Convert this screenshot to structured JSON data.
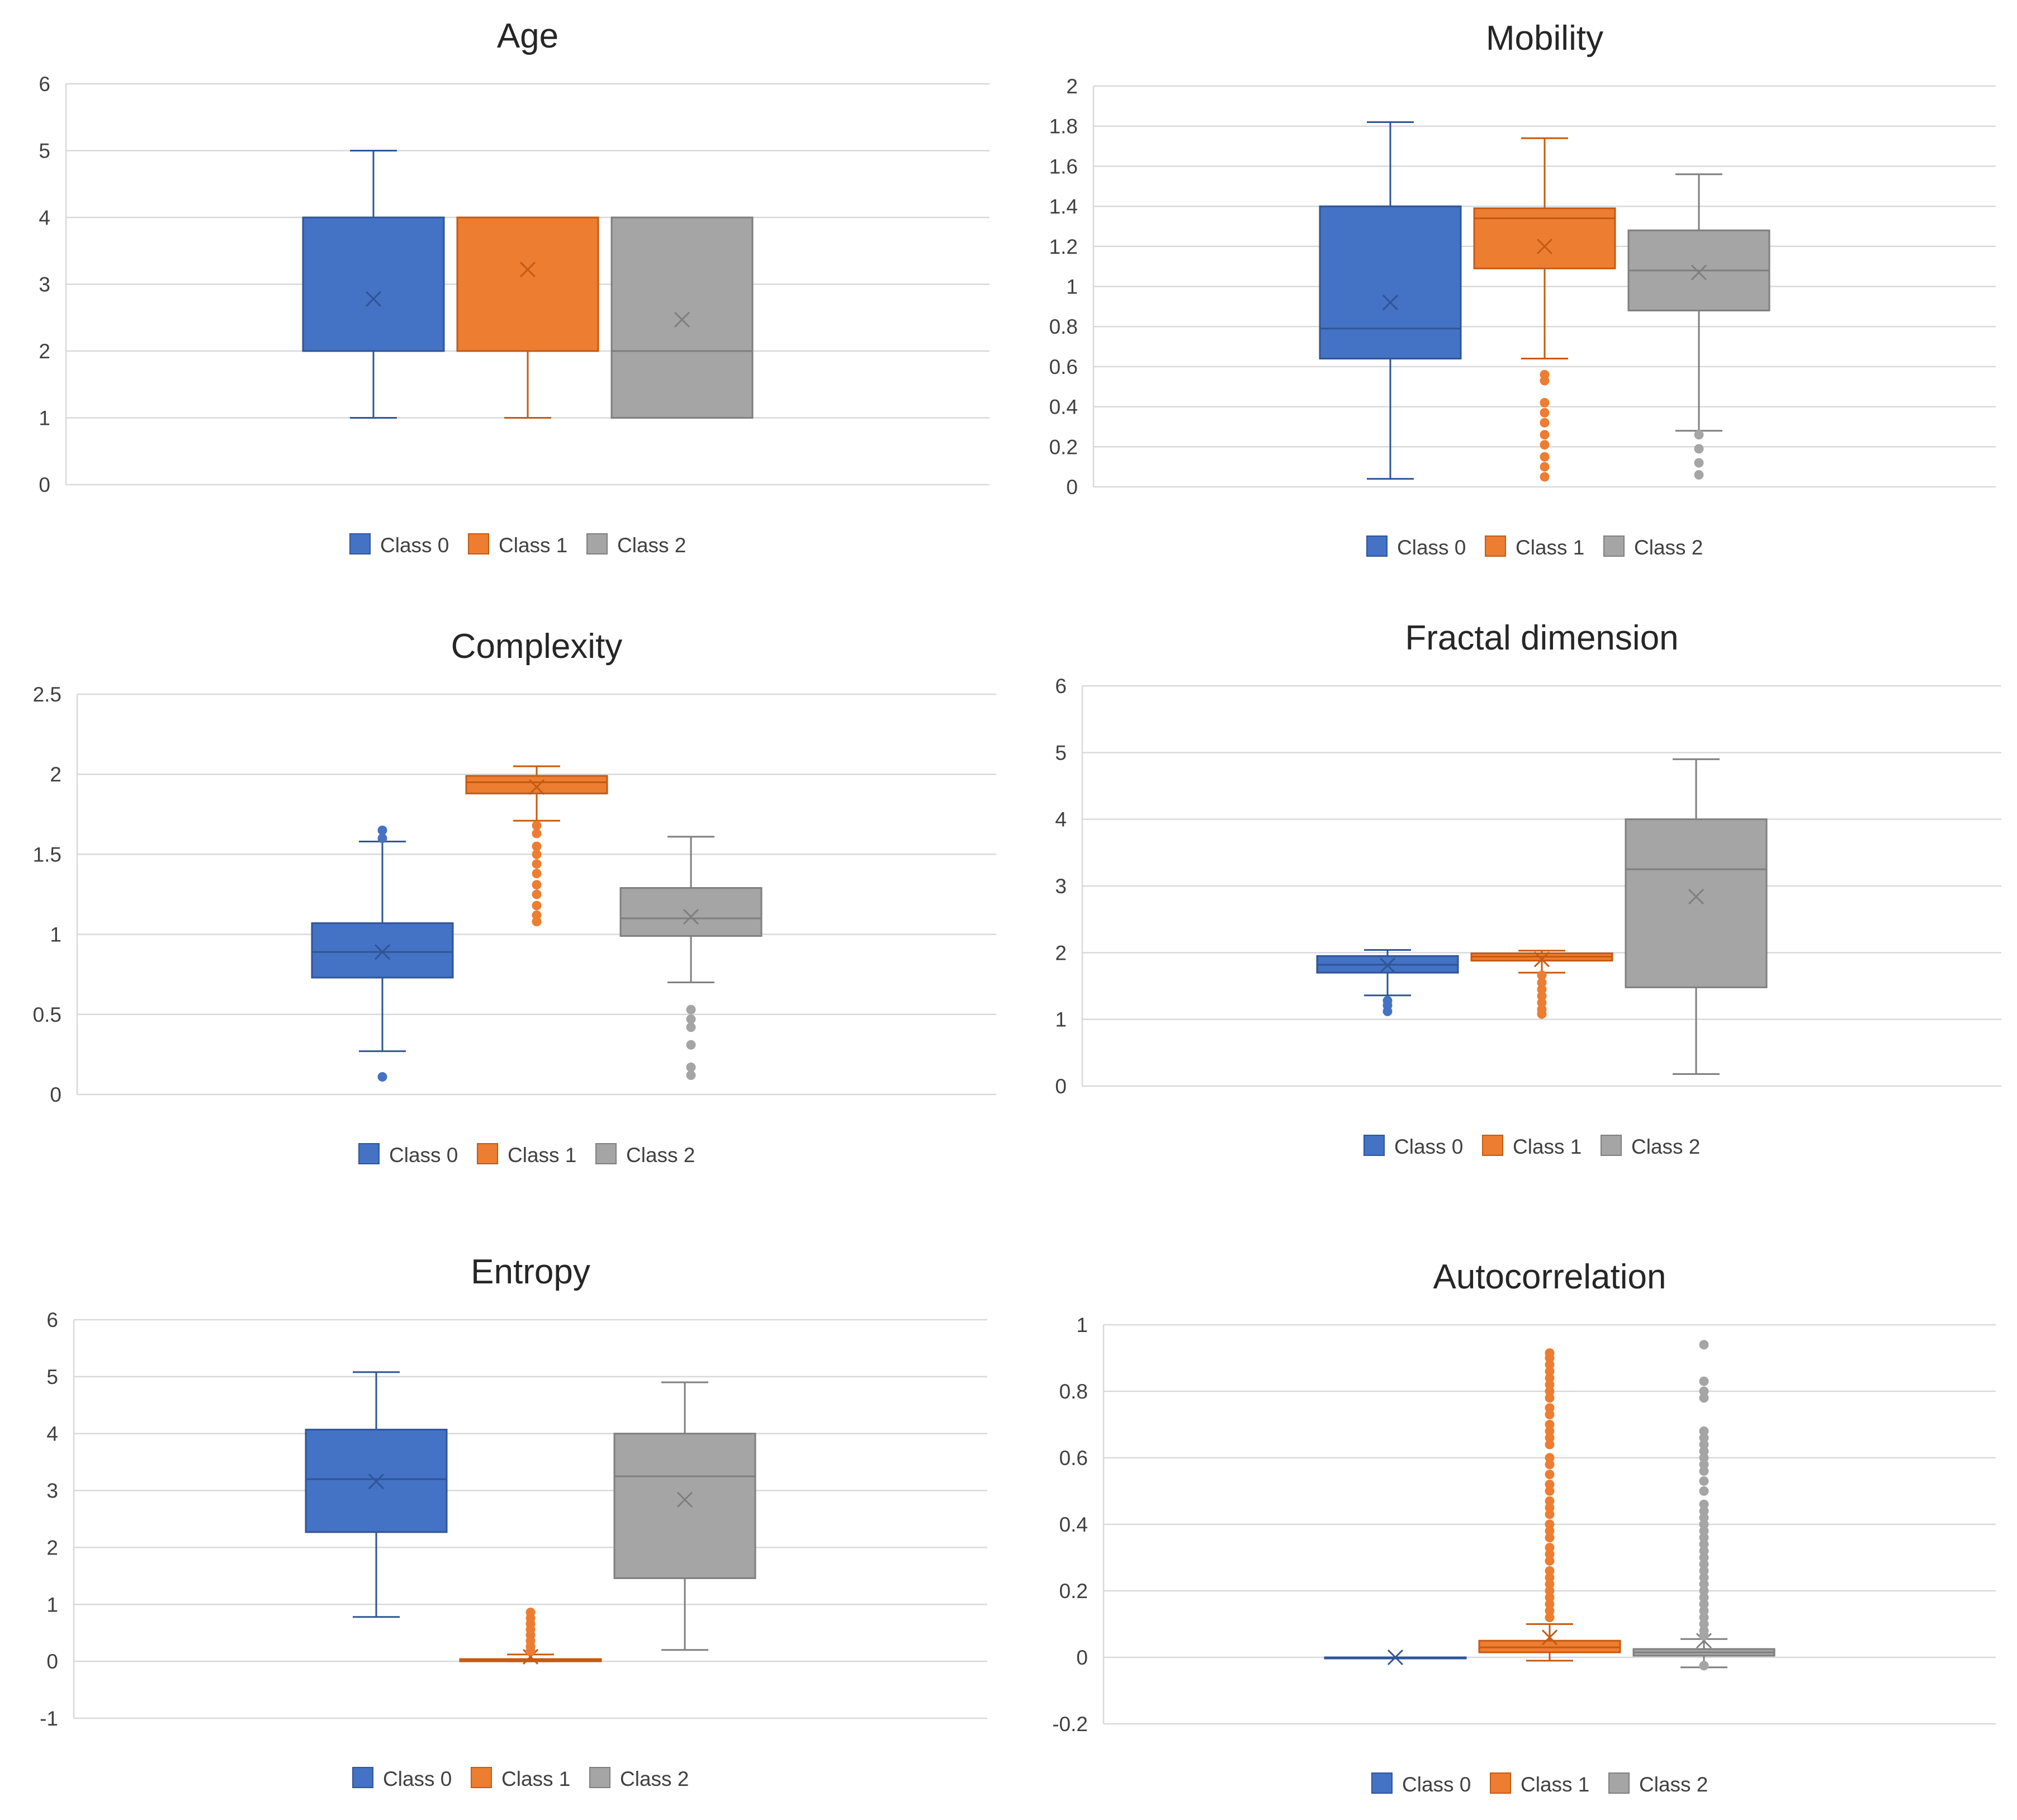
{
  "colors": {
    "class0": "#4472C4",
    "class1": "#ED7D31",
    "class2": "#A5A5A5",
    "class0_dark": "#2F5597",
    "class1_dark": "#C55A11",
    "class2_dark": "#7F7F7F",
    "grid": "#D9D9D9",
    "axis_text": "#595959"
  },
  "chart_data": [
    {
      "type": "box",
      "title": "Age",
      "ylim": [
        0,
        6
      ],
      "yticks": [
        "0",
        "1",
        "2",
        "3",
        "4",
        "5",
        "6"
      ],
      "grid": true,
      "legend_position": "bottom",
      "series": [
        {
          "name": "Class 0",
          "min": 1,
          "q1": 2,
          "median": 2,
          "q3": 4,
          "max": 5,
          "mean": 2.78,
          "outliers": []
        },
        {
          "name": "Class 1",
          "min": 1,
          "q1": 2,
          "median": 2,
          "q3": 4,
          "max": 4,
          "mean": 3.22,
          "outliers": []
        },
        {
          "name": "Class 2",
          "min": 1,
          "q1": 1,
          "median": 2,
          "q3": 4,
          "max": 4,
          "mean": 2.47,
          "outliers": []
        }
      ]
    },
    {
      "type": "box",
      "title": "Mobility",
      "ylim": [
        0,
        2
      ],
      "yticks": [
        "0",
        "0.2",
        "0.4",
        "0.6",
        "0.8",
        "1",
        "1.2",
        "1.4",
        "1.6",
        "1.8",
        "2"
      ],
      "grid": true,
      "legend_position": "bottom",
      "series": [
        {
          "name": "Class 0",
          "min": 0.04,
          "q1": 0.64,
          "median": 0.79,
          "q3": 1.4,
          "max": 1.82,
          "mean": 0.92,
          "outliers": []
        },
        {
          "name": "Class 1",
          "min": 0.64,
          "q1": 1.09,
          "median": 1.34,
          "q3": 1.39,
          "max": 1.74,
          "mean": 1.2,
          "outliers": [
            0.56,
            0.53,
            0.42,
            0.37,
            0.32,
            0.26,
            0.21,
            0.15,
            0.1,
            0.05
          ]
        },
        {
          "name": "Class 2",
          "min": 0.28,
          "q1": 0.88,
          "median": 1.08,
          "q3": 1.28,
          "max": 1.56,
          "mean": 1.07,
          "outliers": [
            0.26,
            0.19,
            0.12,
            0.06
          ]
        }
      ]
    },
    {
      "type": "box",
      "title": "Complexity",
      "ylim": [
        0,
        2.5
      ],
      "yticks": [
        "0",
        "0.5",
        "1",
        "1.5",
        "2",
        "2.5"
      ],
      "grid": true,
      "legend_position": "bottom",
      "series": [
        {
          "name": "Class 0",
          "min": 0.27,
          "q1": 0.73,
          "median": 0.89,
          "q3": 1.07,
          "max": 1.58,
          "mean": 0.89,
          "outliers": [
            1.65,
            1.6,
            0.11
          ]
        },
        {
          "name": "Class 1",
          "min": 1.71,
          "q1": 1.88,
          "median": 1.95,
          "q3": 1.99,
          "max": 2.05,
          "mean": 1.92,
          "outliers": [
            1.68,
            1.63,
            1.55,
            1.5,
            1.44,
            1.38,
            1.31,
            1.25,
            1.18,
            1.12,
            1.08
          ]
        },
        {
          "name": "Class 2",
          "min": 0.7,
          "q1": 0.99,
          "median": 1.1,
          "q3": 1.29,
          "max": 1.61,
          "mean": 1.11,
          "outliers": [
            0.53,
            0.47,
            0.42,
            0.31,
            0.17,
            0.12
          ]
        }
      ]
    },
    {
      "type": "box",
      "title": "Fractal dimension",
      "ylim": [
        0,
        6
      ],
      "yticks": [
        "0",
        "1",
        "2",
        "3",
        "4",
        "5",
        "6"
      ],
      "grid": true,
      "legend_position": "bottom",
      "series": [
        {
          "name": "Class 0",
          "min": 1.36,
          "q1": 1.7,
          "median": 1.82,
          "q3": 1.95,
          "max": 2.04,
          "mean": 1.81,
          "outliers": [
            1.28,
            1.21,
            1.12
          ]
        },
        {
          "name": "Class 1",
          "min": 1.7,
          "q1": 1.88,
          "median": 1.94,
          "q3": 1.99,
          "max": 2.03,
          "mean": 1.9,
          "outliers": [
            1.66,
            1.55,
            1.45,
            1.35,
            1.25,
            1.15,
            1.08
          ]
        },
        {
          "name": "Class 2",
          "min": 0.18,
          "q1": 1.48,
          "median": 3.25,
          "q3": 4.0,
          "max": 4.9,
          "mean": 2.84,
          "outliers": []
        }
      ]
    },
    {
      "type": "box",
      "title": "Entropy",
      "ylim": [
        -1,
        6
      ],
      "yticks": [
        "-1",
        "0",
        "1",
        "2",
        "3",
        "4",
        "5",
        "6"
      ],
      "grid": true,
      "legend_position": "bottom",
      "series": [
        {
          "name": "Class 0",
          "min": 0.78,
          "q1": 2.27,
          "median": 3.2,
          "q3": 4.07,
          "max": 5.08,
          "mean": 3.16,
          "outliers": []
        },
        {
          "name": "Class 1",
          "min": 0.0,
          "q1": 0.0,
          "median": 0.02,
          "q3": 0.04,
          "max": 0.12,
          "mean": 0.08,
          "outliers": [
            0.86,
            0.76,
            0.66,
            0.56,
            0.46,
            0.36,
            0.26,
            0.18
          ]
        },
        {
          "name": "Class 2",
          "min": 0.2,
          "q1": 1.46,
          "median": 3.25,
          "q3": 4.0,
          "max": 4.9,
          "mean": 2.84,
          "outliers": []
        }
      ]
    },
    {
      "type": "box",
      "title": "Autocorrelation",
      "ylim": [
        -0.2,
        1
      ],
      "yticks": [
        "-0.2",
        "0",
        "0.2",
        "0.4",
        "0.6",
        "0.8",
        "1"
      ],
      "grid": true,
      "legend_position": "bottom",
      "series": [
        {
          "name": "Class 0",
          "min": 0,
          "q1": 0,
          "median": 0,
          "q3": 0,
          "max": 0,
          "mean": 0,
          "outliers": []
        },
        {
          "name": "Class 1",
          "min": -0.01,
          "q1": 0.015,
          "median": 0.03,
          "q3": 0.05,
          "max": 0.1,
          "mean": 0.06,
          "outliers": [
            0.915,
            0.9,
            0.88,
            0.86,
            0.84,
            0.82,
            0.8,
            0.78,
            0.75,
            0.73,
            0.7,
            0.68,
            0.66,
            0.64,
            0.6,
            0.58,
            0.55,
            0.52,
            0.5,
            0.47,
            0.45,
            0.43,
            0.4,
            0.38,
            0.36,
            0.33,
            0.31,
            0.29,
            0.26,
            0.24,
            0.22,
            0.2,
            0.18,
            0.16,
            0.14,
            0.12
          ]
        },
        {
          "name": "Class 2",
          "min": -0.03,
          "q1": 0.005,
          "median": 0.015,
          "q3": 0.025,
          "max": 0.055,
          "mean": 0.05,
          "outliers": [
            0.94,
            0.83,
            0.8,
            0.78,
            0.68,
            0.66,
            0.64,
            0.62,
            0.6,
            0.58,
            0.56,
            0.53,
            0.5,
            0.46,
            0.44,
            0.42,
            0.4,
            0.38,
            0.36,
            0.34,
            0.32,
            0.3,
            0.28,
            0.26,
            0.24,
            0.22,
            0.2,
            0.18,
            0.16,
            0.14,
            0.12,
            0.1,
            0.08,
            0.065,
            -0.025
          ]
        }
      ]
    }
  ]
}
